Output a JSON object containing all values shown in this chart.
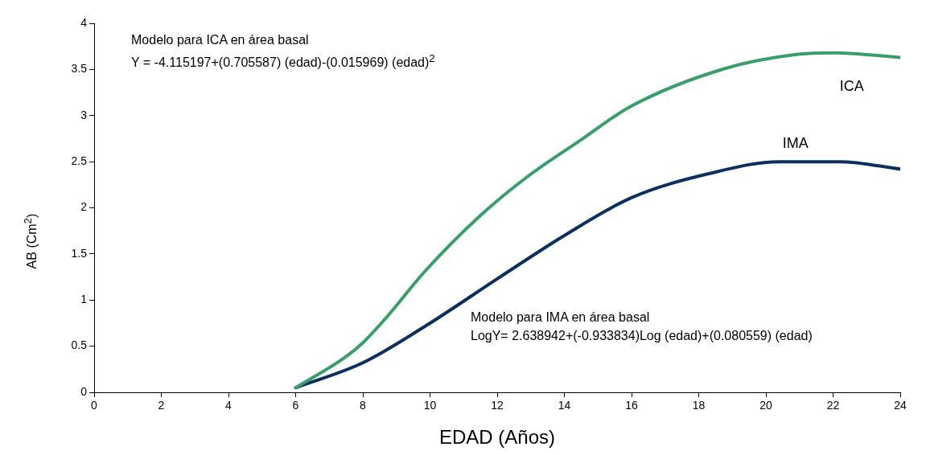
{
  "chart_data": {
    "type": "line",
    "xlabel": "EDAD (Años)",
    "ylabel": "AB (Cm$^{2}$)",
    "annotations": [
      "Modelo para ICA en área basal\nY = -4.115197+(0.705587) (edad)-(0.015969) (edad)$^{2}$",
      "Modelo para IMA en área basal\nLogY= 2.638942+(-0.933834)Log (edad)+(0.080559) (edad)"
    ],
    "series": [
      {
        "name": "ICA",
        "color": "#3a9e6a",
        "x": [
          6,
          7.43,
          7.98,
          8.65,
          9.87,
          11.45,
          12.91,
          14.51,
          15.98,
          18.78,
          20.86,
          22.08,
          22.63,
          23.98
        ],
        "values": [
          0.05,
          0.37,
          0.53,
          0.79,
          1.32,
          1.9,
          2.34,
          2.74,
          3.1,
          3.51,
          3.66,
          3.68,
          3.67,
          3.63
        ]
      },
      {
        "name": "IMA",
        "color": "#0d2f5f",
        "x": [
          6,
          8,
          10,
          12,
          14,
          16,
          18.3,
          20.4,
          22.2,
          24
        ],
        "values": [
          0.05,
          0.32,
          0.75,
          1.23,
          1.7,
          2.11,
          2.37,
          2.5,
          2.5,
          2.42
        ]
      }
    ],
    "xlim": [
      0,
      24
    ],
    "xticks": [
      0,
      2,
      4,
      6,
      8,
      10,
      12,
      14,
      16,
      18,
      20,
      22,
      24
    ],
    "ylim": [
      0,
      4
    ],
    "yticks": [
      0,
      0.5,
      1,
      1.5,
      2,
      2.5,
      3,
      3.5,
      4
    ],
    "grid": false,
    "legend": false,
    "marker": "none",
    "line_style": "solid"
  }
}
